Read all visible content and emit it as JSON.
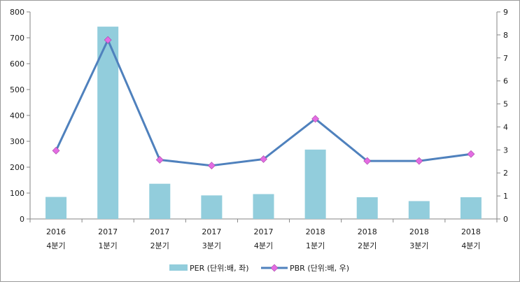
{
  "chart_data": {
    "type": "bar+line",
    "categories": [
      [
        "2016",
        "4분기"
      ],
      [
        "2017",
        "1분기"
      ],
      [
        "2017",
        "2분기"
      ],
      [
        "2017",
        "3분기"
      ],
      [
        "2017",
        "4분기"
      ],
      [
        "2018",
        "1분기"
      ],
      [
        "2018",
        "2분기"
      ],
      [
        "2018",
        "3분기"
      ],
      [
        "2018",
        "4분기"
      ]
    ],
    "series": [
      {
        "name": "PER (단위:배, 좌)",
        "type": "bar",
        "axis": "left",
        "color": "#92CDDC",
        "values": [
          85,
          743,
          136,
          91,
          96,
          268,
          84,
          69,
          84
        ]
      },
      {
        "name": "PBR (단위:배, 우)",
        "type": "line",
        "axis": "right",
        "color": "#4F81BD",
        "marker_color": "#E46CE3",
        "values": [
          2.97,
          7.78,
          2.57,
          2.32,
          2.6,
          4.35,
          2.52,
          2.52,
          2.82
        ]
      }
    ],
    "y_left": {
      "ylim": [
        0,
        800
      ],
      "ticks": [
        "0",
        "100",
        "200",
        "300",
        "400",
        "500",
        "600",
        "700",
        "800"
      ]
    },
    "y_right": {
      "ylim": [
        0,
        9
      ],
      "ticks": [
        "0",
        "1",
        "2",
        "3",
        "4",
        "5",
        "6",
        "7",
        "8",
        "9"
      ]
    },
    "grid": false,
    "legend": "bottom"
  }
}
